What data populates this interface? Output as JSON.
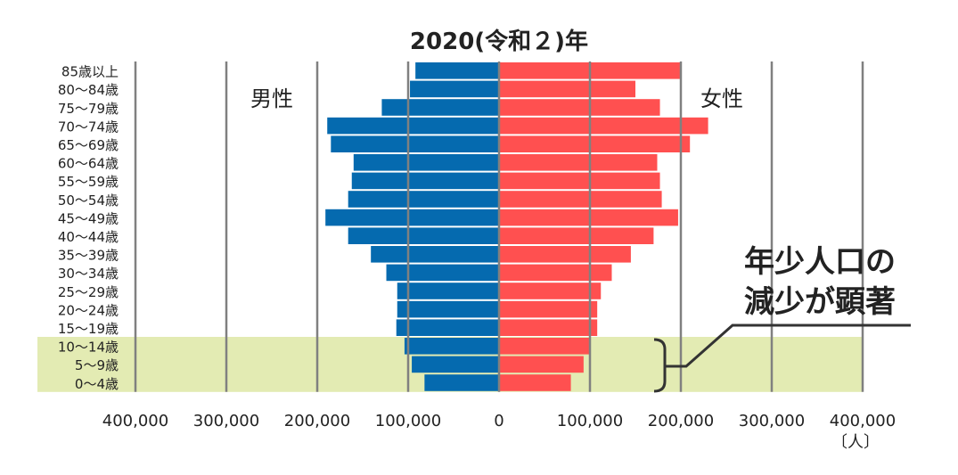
{
  "chart_data": {
    "type": "bar",
    "orientation": "horizontal-pyramid",
    "title": "2020(令和２)年",
    "categories": [
      "85歳以上",
      "80～84歳",
      "75～79歳",
      "70～74歳",
      "65～69歳",
      "60～64歳",
      "55～59歳",
      "50～54歳",
      "45～49歳",
      "40～44歳",
      "35～39歳",
      "30～34歳",
      "25～29歳",
      "20～24歳",
      "15～19歳",
      "10～14歳",
      "5～9歳",
      "0～4歳"
    ],
    "series": [
      {
        "name": "男性",
        "color": "#056AAF",
        "values": [
          92000,
          98000,
          129000,
          189000,
          185000,
          160000,
          162000,
          166000,
          191000,
          166000,
          141000,
          124000,
          112000,
          112000,
          113000,
          104000,
          96000,
          82000
        ]
      },
      {
        "name": "女性",
        "color": "#FF5050",
        "values": [
          199000,
          150000,
          177000,
          230000,
          210000,
          174000,
          177000,
          179000,
          197000,
          170000,
          145000,
          124000,
          112000,
          108000,
          108000,
          99000,
          93000,
          79000
        ]
      }
    ],
    "xlim": [
      -400000,
      400000
    ],
    "xticks": [
      "400,000",
      "300,000",
      "200,000",
      "100,000",
      "0",
      "100,000",
      "200,000",
      "300,000",
      "400,000"
    ],
    "unit": "〔人〕",
    "grid": true,
    "highlight": {
      "categories": [
        "10～14歳",
        "5～9歳",
        "0～4歳"
      ],
      "color": "#E3EBB3"
    },
    "annotation": [
      "年少人口の",
      "減少が顕著"
    ]
  }
}
